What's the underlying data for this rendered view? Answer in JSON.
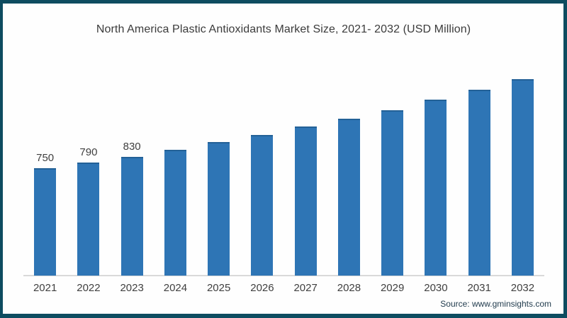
{
  "frame": {
    "border_color": "#0e4c60",
    "background": "#fefefe"
  },
  "source": "Source: www.gminsights.com",
  "chart_data": {
    "type": "bar",
    "title": "North America Plastic Antioxidants Market Size, 2021- 2032 (USD Million)",
    "xlabel": "",
    "ylabel": "USD Million",
    "categories": [
      "2021",
      "2022",
      "2023",
      "2024",
      "2025",
      "2026",
      "2027",
      "2028",
      "2029",
      "2030",
      "2031",
      "2032"
    ],
    "values": [
      750,
      790,
      830,
      875,
      930,
      980,
      1040,
      1095,
      1155,
      1225,
      1295,
      1370
    ],
    "data_labels": [
      "750",
      "790",
      "830",
      "",
      "",
      "",
      "",
      "",
      "",
      "",
      "",
      ""
    ],
    "ylim": [
      0,
      1450
    ],
    "grid": false,
    "legend": false,
    "bar_color": "#2e75b5",
    "bar_top_edge_color": "#236197",
    "axis_line_color": "#d9d9d9"
  }
}
